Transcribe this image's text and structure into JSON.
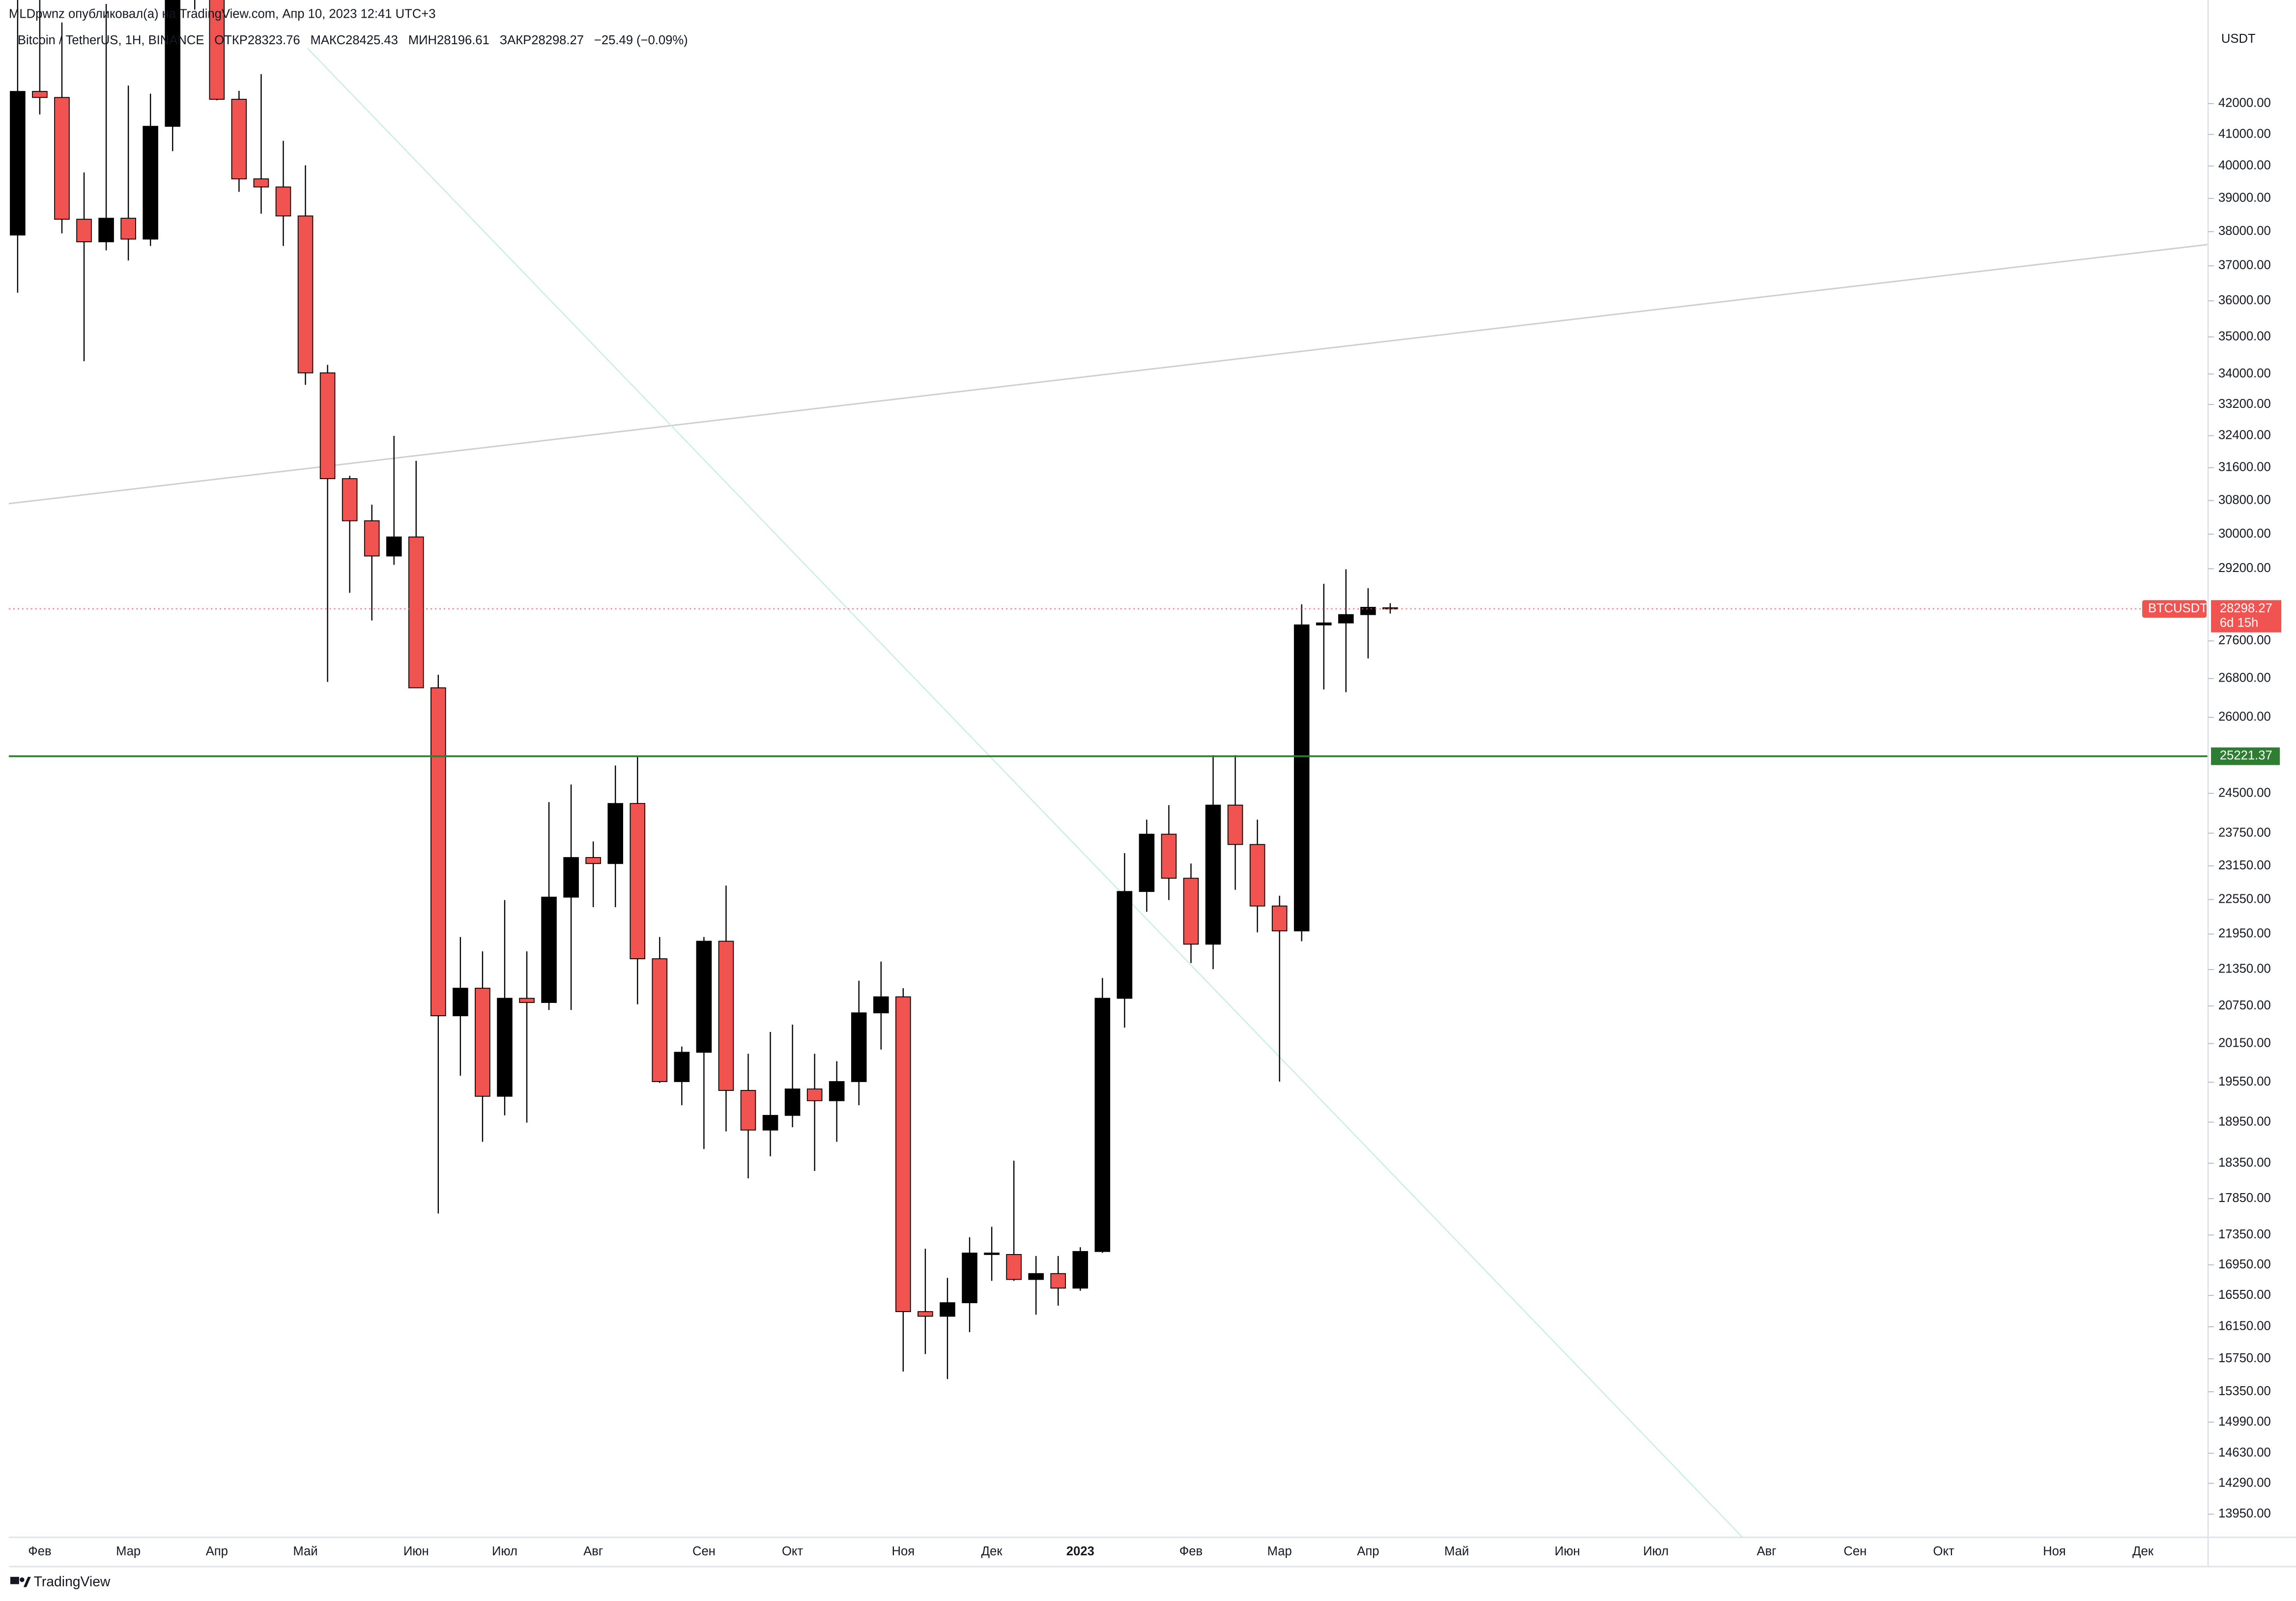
{
  "header": {
    "author_line": "MLDpwnz опубликовал(а) на TradingView.com, Апр 10, 2023 12:41 UTC+3",
    "symbol_line": [
      "Bitcoin / TetherUS, 1Н, BINANCE",
      "ОТКР28323.76",
      "МАКС28425.43",
      "МИН28196.61",
      "ЗАКР28298.27",
      "−25.49 (−0.09%)"
    ]
  },
  "footer": {
    "brand": "TradingView"
  },
  "chart_data": {
    "type": "candlestick",
    "y_unit": "USDT",
    "log_y": true,
    "up_color": "#000000",
    "down_color": "#f05350",
    "border_color": "#000000",
    "ylim": [
      13700,
      45540
    ],
    "yticks": [
      {
        "value": 42000,
        "label": "42000.00"
      },
      {
        "value": 41000,
        "label": "41000.00"
      },
      {
        "value": 40000,
        "label": "40000.00"
      },
      {
        "value": 39000,
        "label": "39000.00"
      },
      {
        "value": 38000,
        "label": "38000.00"
      },
      {
        "value": 37000,
        "label": "37000.00"
      },
      {
        "value": 36000,
        "label": "36000.00"
      },
      {
        "value": 35000,
        "label": "35000.00"
      },
      {
        "value": 34000,
        "label": "34000.00"
      },
      {
        "value": 33200,
        "label": "33200.00"
      },
      {
        "value": 32400,
        "label": "32400.00"
      },
      {
        "value": 31600,
        "label": "31600.00"
      },
      {
        "value": 30800,
        "label": "30800.00"
      },
      {
        "value": 30000,
        "label": "30000.00"
      },
      {
        "value": 29200,
        "label": "29200.00"
      },
      {
        "value": 27600,
        "label": "27600.00"
      },
      {
        "value": 26800,
        "label": "26800.00"
      },
      {
        "value": 26000,
        "label": "26000.00"
      },
      {
        "value": 24500,
        "label": "24500.00"
      },
      {
        "value": 23750,
        "label": "23750.00"
      },
      {
        "value": 23150,
        "label": "23150.00"
      },
      {
        "value": 22550,
        "label": "22550.00"
      },
      {
        "value": 21950,
        "label": "21950.00"
      },
      {
        "value": 21350,
        "label": "21350.00"
      },
      {
        "value": 20750,
        "label": "20750.00"
      },
      {
        "value": 20150,
        "label": "20150.00"
      },
      {
        "value": 19550,
        "label": "19550.00"
      },
      {
        "value": 18950,
        "label": "18950.00"
      },
      {
        "value": 18350,
        "label": "18350.00"
      },
      {
        "value": 17850,
        "label": "17850.00"
      },
      {
        "value": 17350,
        "label": "17350.00"
      },
      {
        "value": 16950,
        "label": "16950.00"
      },
      {
        "value": 16550,
        "label": "16550.00"
      },
      {
        "value": 16150,
        "label": "16150.00"
      },
      {
        "value": 15750,
        "label": "15750.00"
      },
      {
        "value": 15350,
        "label": "15350.00"
      },
      {
        "value": 14990,
        "label": "14990.00"
      },
      {
        "value": 14630,
        "label": "14630.00"
      },
      {
        "value": 14290,
        "label": "14290.00"
      },
      {
        "value": 13950,
        "label": "13950.00"
      }
    ],
    "categories": [
      null,
      "Фев",
      null,
      null,
      null,
      "Мар",
      null,
      null,
      null,
      "Апр",
      null,
      null,
      null,
      "Май",
      null,
      null,
      null,
      null,
      "Июн",
      null,
      null,
      null,
      "Июл",
      null,
      null,
      null,
      "Авг",
      null,
      null,
      null,
      null,
      "Сен",
      null,
      null,
      null,
      "Окт",
      null,
      null,
      null,
      null,
      "Ноя",
      null,
      null,
      null,
      "Дек",
      null,
      null,
      null,
      "2023",
      null,
      null,
      null,
      null,
      "Фев",
      null,
      null,
      null,
      "Мар",
      null,
      null,
      null,
      "Апр",
      null,
      null,
      null,
      "Май",
      null,
      null,
      null,
      null,
      "Июн",
      null,
      null,
      null,
      "Июл",
      null,
      null,
      null,
      null,
      "Авг",
      null,
      null,
      null,
      "Сен",
      null,
      null,
      null,
      "Окт",
      null,
      null,
      null,
      null,
      "Ноя",
      null,
      null,
      null,
      "Дек",
      null
    ],
    "open": [
      37900,
      42400,
      42200,
      38370,
      37700,
      38400,
      37780,
      41260,
      46820,
      46407,
      42140,
      39600,
      39350,
      38469,
      34030,
      31330,
      30316,
      29493,
      29935,
      26607,
      20592,
      21040,
      19337,
      20875,
      20807,
      22592,
      23302,
      23193,
      24307,
      21530,
      19560,
      20013,
      21827,
      19425,
      18833,
      19050,
      19447,
      19270,
      19560,
      20639,
      20899,
      16342,
      16283,
      16456,
      17088,
      17088,
      16758,
      16835,
      16645,
      17128,
      20875,
      22692,
      23731,
      22928,
      21777,
      24276,
      23541,
      22436,
      22004,
      27947,
      27990,
      28173,
      28323.76,
      null,
      null,
      null,
      null,
      null,
      null,
      null,
      null,
      null,
      null,
      null,
      null,
      null,
      null,
      null,
      null,
      null,
      null,
      null,
      null,
      null,
      null,
      null,
      null,
      null,
      null,
      null,
      null,
      null,
      null,
      null,
      null,
      null,
      null,
      null
    ],
    "high": [
      45821,
      45855,
      44750,
      39800,
      45400,
      42594,
      42325,
      48189,
      48240,
      47200,
      42420,
      42976,
      40795,
      40023,
      34243,
      31400,
      30700,
      32395,
      31770,
      26880,
      21900,
      21655,
      22540,
      21655,
      24334,
      24671,
      23596,
      25040,
      25213,
      21900,
      20103,
      21900,
      22797,
      19990,
      20333,
      20450,
      19990,
      19874,
      21164,
      21483,
      21040,
      17165,
      16779,
      17320,
      17462,
      18388,
      17068,
      17068,
      17185,
      21210,
      23382,
      24003,
      24276,
      23193,
      25242,
      25242,
      24003,
      22617,
      28400,
      28860,
      29190,
      28760,
      28425.43,
      null,
      null,
      null,
      null,
      null,
      null,
      null,
      null,
      null,
      null,
      null,
      null,
      null,
      null,
      null,
      null,
      null,
      null,
      null,
      null,
      null,
      null,
      null,
      null,
      null,
      null,
      null,
      null,
      null,
      null,
      null,
      null,
      null,
      null,
      null
    ],
    "low": [
      36230,
      41645,
      37950,
      34340,
      37450,
      37155,
      37578,
      40467,
      45200,
      42107,
      39200,
      38536,
      37578,
      33713,
      26730,
      28657,
      28045,
      29291,
      26600,
      17644,
      19650,
      18661,
      19050,
      18943,
      20685,
      20685,
      22416,
      22416,
      20777,
      19540,
      19202,
      18556,
      18812,
      18136,
      18451,
      18875,
      18241,
      18661,
      19202,
      20055,
      15594,
      15809,
      15503,
      16082,
      16740,
      16740,
      16303,
      16418,
      16610,
      17110,
      20403,
      22335,
      22540,
      21458,
      21357,
      22722,
      21978,
      19560,
      21827,
      26573,
      26515,
      27225,
      28196.61,
      null,
      null,
      null,
      null,
      null,
      null,
      null,
      null,
      null,
      null,
      null,
      null,
      null,
      null,
      null,
      null,
      null,
      null,
      null,
      null,
      null,
      null,
      null,
      null,
      null,
      null,
      null,
      null,
      null,
      null,
      null,
      null,
      null,
      null,
      null
    ],
    "close": [
      42400,
      42200,
      38370,
      37700,
      38400,
      37780,
      41260,
      46820,
      46407,
      42140,
      39600,
      39350,
      38469,
      34030,
      31330,
      30316,
      29493,
      29935,
      26607,
      20592,
      21040,
      19337,
      20875,
      20807,
      22592,
      23302,
      23193,
      24307,
      21530,
      19560,
      20013,
      21827,
      19425,
      18833,
      19050,
      19447,
      19270,
      19560,
      20639,
      20899,
      16342,
      16283,
      16456,
      17107,
      17107,
      16758,
      16835,
      16645,
      17128,
      20875,
      22692,
      23731,
      22928,
      21777,
      24276,
      23541,
      22436,
      22004,
      27947,
      27990,
      28173,
      28333,
      28298.27,
      null,
      null,
      null,
      null,
      null,
      null,
      null,
      null,
      null,
      null,
      null,
      null,
      null,
      null,
      null,
      null,
      null,
      null,
      null,
      null,
      null,
      null,
      null,
      null,
      null,
      null,
      null,
      null,
      null,
      null,
      null,
      null,
      null,
      null,
      null
    ],
    "last_price": {
      "value": 28298.27,
      "label": "28298.27",
      "symbol": "BTCUSDT",
      "countdown": "6d 15h",
      "color": "#f05350"
    },
    "level": {
      "value": 25221.37,
      "label": "25221.37",
      "color": "#2e7d32"
    }
  }
}
